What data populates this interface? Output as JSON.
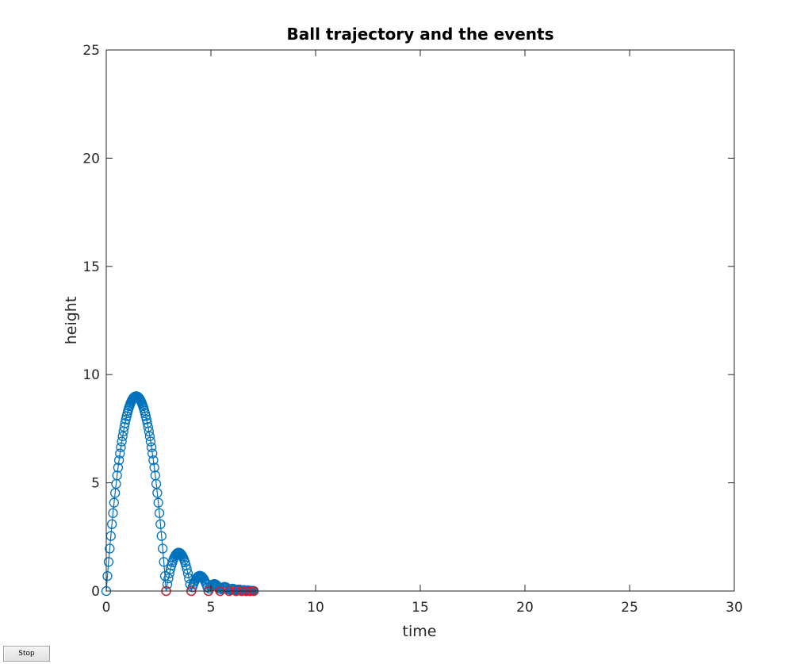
{
  "figure": {
    "stop_label": "Stop"
  },
  "chart_data": {
    "type": "scatter",
    "title": "Ball trajectory and the events",
    "xlabel": "time",
    "ylabel": "height",
    "xlim": [
      0,
      30
    ],
    "ylim": [
      0,
      25
    ],
    "xticks": [
      0,
      5,
      10,
      15,
      20,
      25,
      30
    ],
    "yticks": [
      0,
      5,
      10,
      15,
      20,
      25
    ],
    "grid": false,
    "series": [
      {
        "role": "trajectory",
        "color": "#0072BD",
        "marker": "circle",
        "line": true,
        "bounces": [
          {
            "t0": 0.0,
            "t1": 2.86,
            "peak": 9.0
          },
          {
            "t0": 2.86,
            "t1": 4.06,
            "peak": 1.77
          },
          {
            "t0": 4.06,
            "t1": 4.88,
            "peak": 0.7
          },
          {
            "t0": 4.88,
            "t1": 5.44,
            "peak": 0.32
          },
          {
            "t0": 5.44,
            "t1": 5.87,
            "peak": 0.19
          },
          {
            "t0": 5.87,
            "t1": 6.2,
            "peak": 0.11
          },
          {
            "t0": 6.2,
            "t1": 6.47,
            "peak": 0.07
          },
          {
            "t0": 6.47,
            "t1": 6.69,
            "peak": 0.04
          },
          {
            "t0": 6.69,
            "t1": 6.88,
            "peak": 0.025
          },
          {
            "t0": 6.88,
            "t1": 7.05,
            "peak": 0.015
          }
        ]
      },
      {
        "role": "events",
        "color": "#E41A1C",
        "marker": "circle",
        "line": false,
        "x": [
          2.86,
          4.06,
          4.88,
          5.44,
          5.87,
          6.2,
          6.47,
          6.69,
          6.88,
          7.05
        ],
        "y": [
          0,
          0,
          0,
          0,
          0,
          0,
          0,
          0,
          0,
          0
        ]
      }
    ]
  }
}
